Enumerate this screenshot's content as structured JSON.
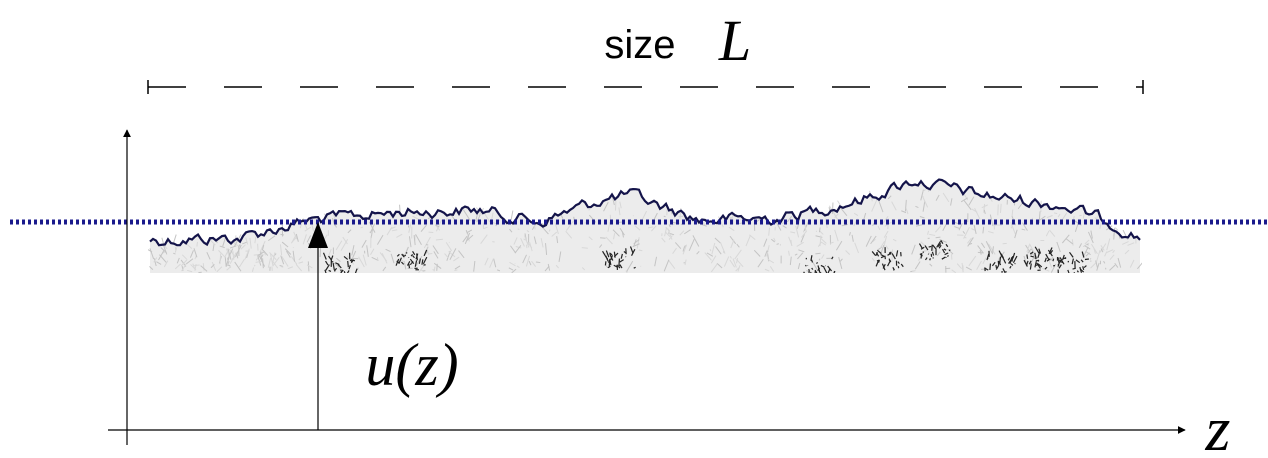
{
  "labels": {
    "size": "size",
    "size_symbol": "L",
    "height": "u(z)",
    "axis": "z"
  }
}
